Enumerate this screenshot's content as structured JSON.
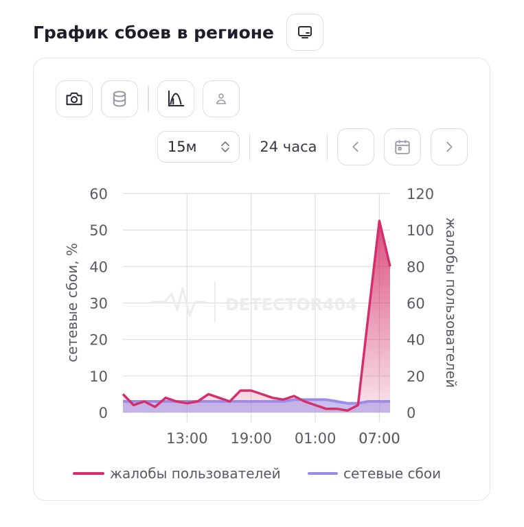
{
  "header": {
    "title": "График сбоев в регионе",
    "monitor_icon": "monitor-icon"
  },
  "toolbar": {
    "icons": [
      "camera-icon",
      "database-icon",
      "chart-curve-icon",
      "user-icon"
    ]
  },
  "controls": {
    "interval": "15м",
    "range": "24 часа",
    "prev_icon": "chevron-left-icon",
    "calendar_icon": "calendar-icon",
    "next_icon": "chevron-right-icon"
  },
  "watermark": "DETECTOR404",
  "colors": {
    "complaints": "#d42f6a",
    "outages": "#9d8ce6",
    "grid": "#dcdce2",
    "text": "#5a5a66"
  },
  "chart_data": {
    "type": "line",
    "x": [
      "07:00",
      "08:00",
      "09:00",
      "10:00",
      "11:00",
      "12:00",
      "13:00",
      "14:00",
      "15:00",
      "16:00",
      "17:00",
      "18:00",
      "19:00",
      "20:00",
      "21:00",
      "22:00",
      "23:00",
      "00:00",
      "01:00",
      "02:00",
      "03:00",
      "04:00",
      "05:00",
      "06:00",
      "07:00",
      "08:00"
    ],
    "xticks": [
      "07:00",
      "13:00",
      "19:00",
      "01:00",
      "07:00"
    ],
    "ylabel": "сетевые сбои, %",
    "y2label": "жалобы пользователей",
    "ylim": [
      0,
      60
    ],
    "y2lim": [
      0,
      120
    ],
    "yticks": [
      0,
      10,
      20,
      30,
      40,
      50,
      60
    ],
    "y2ticks": [
      0,
      20,
      40,
      60,
      80,
      100,
      120
    ],
    "grid": true,
    "legend": "bottom",
    "series": [
      {
        "name": "жалобы пользователей",
        "axis": "right",
        "color": "#d42f6a",
        "values": [
          10,
          4,
          6,
          3,
          8,
          6,
          5,
          6,
          10,
          8,
          6,
          12,
          12,
          10,
          8,
          7,
          9,
          6,
          4,
          2,
          2,
          1,
          4,
          55,
          105,
          80
        ]
      },
      {
        "name": "сетевые сбои",
        "axis": "left",
        "color": "#9d8ce6",
        "values": [
          3,
          3,
          3,
          3,
          3,
          3,
          3,
          3,
          3,
          3,
          3,
          3,
          3,
          3,
          3,
          3,
          3.5,
          3.5,
          3.5,
          3.5,
          3,
          2.5,
          2.5,
          3,
          3,
          3
        ]
      }
    ]
  }
}
